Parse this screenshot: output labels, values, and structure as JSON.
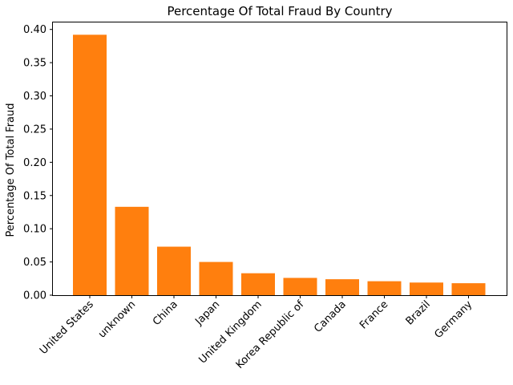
{
  "chart_data": {
    "type": "bar",
    "title": "Percentage Of Total Fraud By Country",
    "xlabel": "",
    "ylabel": "Percentage Of Total Fraud",
    "categories": [
      "United States",
      "unknown",
      "China",
      "Japan",
      "United Kingdom",
      "Korea Republic of",
      "Canada",
      "France",
      "Brazil",
      "Germany"
    ],
    "values": [
      0.392,
      0.133,
      0.073,
      0.05,
      0.033,
      0.026,
      0.024,
      0.021,
      0.019,
      0.018
    ],
    "ylim": [
      0,
      0.4
    ],
    "yticks": [
      "0.00",
      "0.05",
      "0.10",
      "0.15",
      "0.20",
      "0.25",
      "0.30",
      "0.35",
      "0.40"
    ],
    "bar_color": "#ff7f0e",
    "grid": false,
    "legend": "none"
  }
}
